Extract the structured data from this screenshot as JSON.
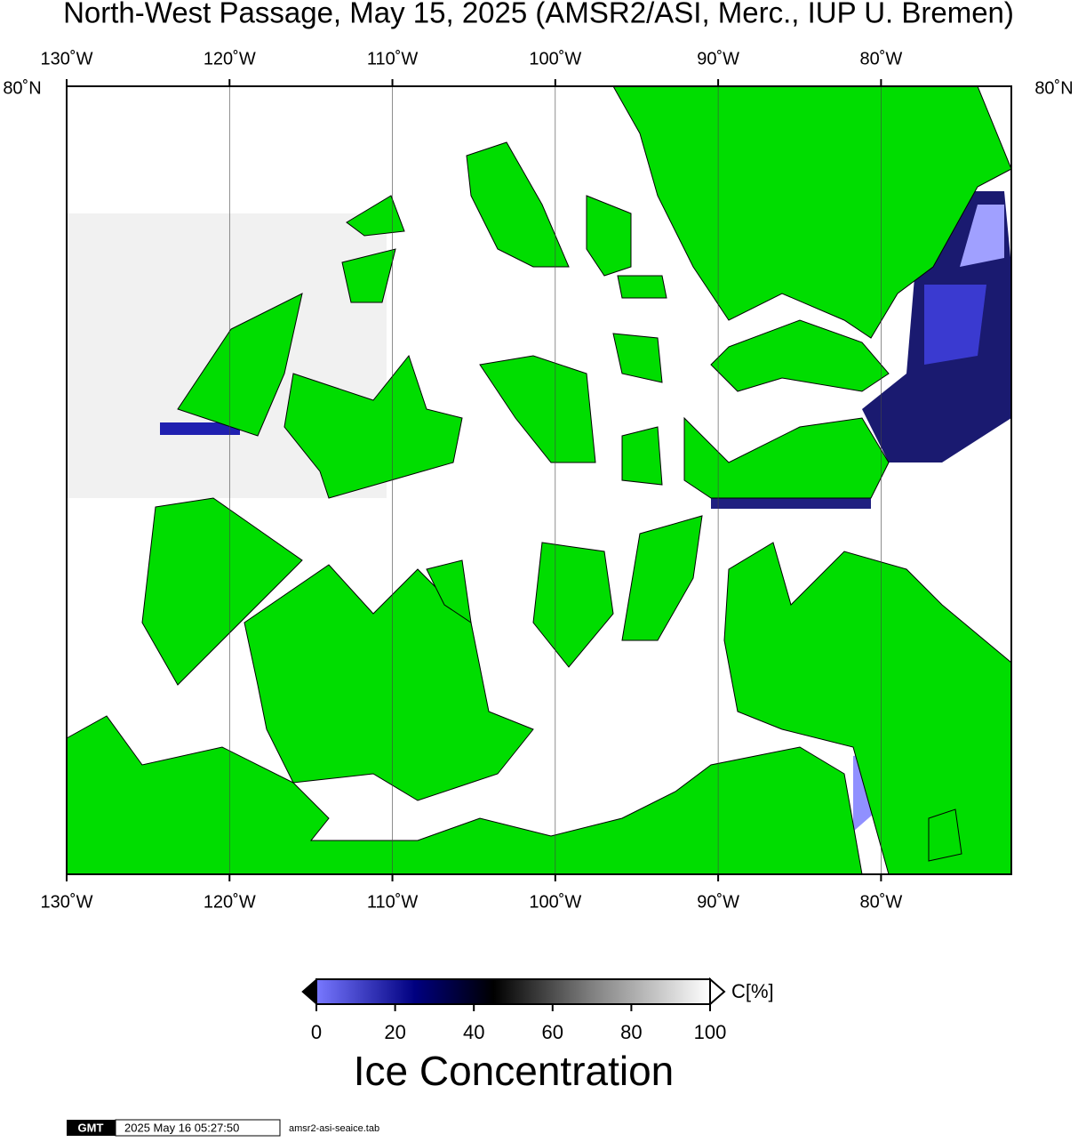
{
  "title": "North-West Passage, May 15, 2025 (AMSR2/ASI, Merc., IUP U. Bremen)",
  "map": {
    "xlim": [
      -130,
      -72
    ],
    "xticks": [
      {
        "value": -130,
        "label": "130˚W"
      },
      {
        "value": -120,
        "label": "120˚W"
      },
      {
        "value": -110,
        "label": "110˚W"
      },
      {
        "value": -100,
        "label": "100˚W"
      },
      {
        "value": -90,
        "label": "90˚W"
      },
      {
        "value": -80,
        "label": "80˚W"
      }
    ],
    "lat_label": "80˚N"
  },
  "colorbar": {
    "lim": [
      0,
      100
    ],
    "ticks": [
      0,
      20,
      40,
      60,
      80,
      100
    ],
    "unit": "C[%]",
    "title": "Ice Concentration"
  },
  "footer": {
    "logo": "GMT",
    "timestamp": "2025 May 16 05:27:50",
    "file": "amsr2-asi-seaice.tab"
  }
}
